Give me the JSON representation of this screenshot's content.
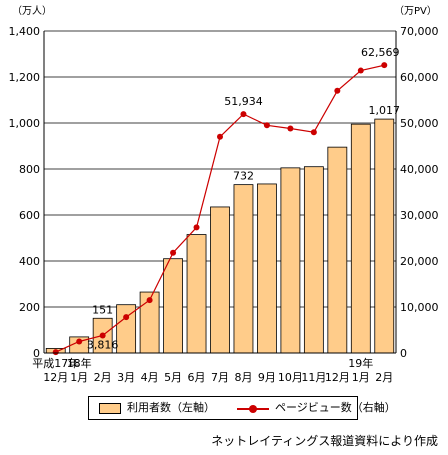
{
  "chart_data": {
    "type": "bar+line",
    "left_axis": {
      "unit_label": "（万人）",
      "range": [
        0,
        1400
      ],
      "ticks": [
        "0",
        "200",
        "400",
        "600",
        "800",
        "1,000",
        "1,200",
        "1,400"
      ]
    },
    "right_axis": {
      "unit_label": "（万PV）",
      "range": [
        0,
        70000
      ],
      "ticks": [
        "0",
        "10,000",
        "20,000",
        "30,000",
        "40,000",
        "50,000",
        "60,000",
        "70,000"
      ]
    },
    "categories": [
      {
        "line1": "平成17年",
        "line2": "12月"
      },
      {
        "line1": "18年",
        "line2": "1月"
      },
      {
        "line1": "",
        "line2": "2月"
      },
      {
        "line1": "",
        "line2": "3月"
      },
      {
        "line1": "",
        "line2": "4月"
      },
      {
        "line1": "",
        "line2": "5月"
      },
      {
        "line1": "",
        "line2": "6月"
      },
      {
        "line1": "",
        "line2": "7月"
      },
      {
        "line1": "",
        "line2": "8月"
      },
      {
        "line1": "",
        "line2": "9月"
      },
      {
        "line1": "",
        "line2": "10月"
      },
      {
        "line1": "",
        "line2": "11月"
      },
      {
        "line1": "",
        "line2": "12月"
      },
      {
        "line1": "19年",
        "line2": "1月"
      },
      {
        "line1": "",
        "line2": "2月"
      }
    ],
    "series": [
      {
        "name": "利用者数（左軸）",
        "axis": "left",
        "type": "bar",
        "color": "#ffcc8a",
        "values": [
          20,
          70,
          151,
          210,
          265,
          410,
          515,
          635,
          732,
          735,
          805,
          810,
          895,
          995,
          1017
        ],
        "labels": [
          "",
          "",
          "151",
          "",
          "",
          "",
          "",
          "",
          "732",
          "",
          "",
          "",
          "",
          "",
          "1,017"
        ]
      },
      {
        "name": "ページビュー数（右軸）",
        "axis": "right",
        "type": "line",
        "color": "#cc0000",
        "values": [
          200,
          2500,
          3816,
          7800,
          11500,
          21800,
          27300,
          47000,
          51934,
          49500,
          48800,
          48000,
          57000,
          61400,
          62569
        ],
        "labels": [
          "",
          "",
          "3,816",
          "",
          "",
          "",
          "",
          "",
          "51,934",
          "",
          "",
          "",
          "",
          "",
          "62,569"
        ]
      }
    ]
  },
  "legend": {
    "bar_label": "利用者数（左軸）",
    "line_label": "ページビュー数（右軸）"
  },
  "source": "ネットレイティングス報道資料により作成"
}
